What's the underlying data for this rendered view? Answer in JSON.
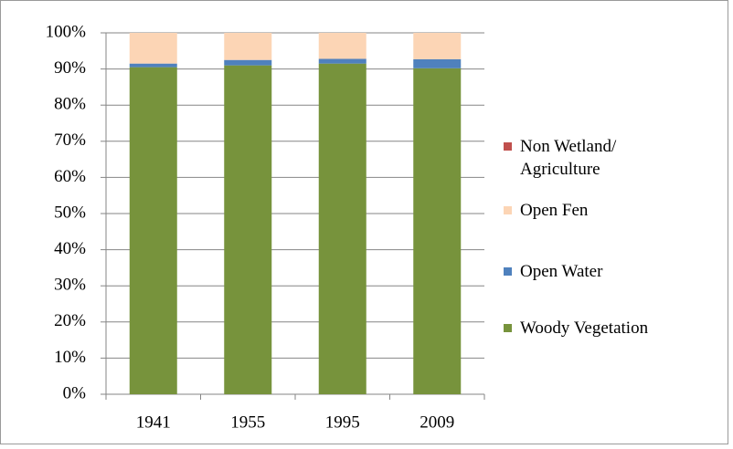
{
  "chart_data": {
    "type": "stacked_bar",
    "categories": [
      "1941",
      "1955",
      "1995",
      "2009"
    ],
    "series": [
      {
        "name": "Woody Vegetation",
        "color": "#77933c",
        "values": [
          90.5,
          91,
          91.5,
          90.2
        ]
      },
      {
        "name": "Open Water",
        "color": "#4f81bd",
        "values": [
          1,
          1.5,
          1.3,
          2.5
        ]
      },
      {
        "name": "Open Fen",
        "color": "#fcd5b5",
        "values": [
          8.5,
          7.5,
          7.2,
          7.3
        ]
      },
      {
        "name": "Non Wetland/ Agriculture",
        "color": "#c0504d",
        "values": [
          0,
          0,
          0,
          0
        ]
      }
    ],
    "ylim": [
      0,
      100
    ],
    "yticks": [
      {
        "value": 0,
        "label": "0%"
      },
      {
        "value": 10,
        "label": "10%"
      },
      {
        "value": 20,
        "label": "20%"
      },
      {
        "value": 30,
        "label": "30%"
      },
      {
        "value": 40,
        "label": "40%"
      },
      {
        "value": 50,
        "label": "50%"
      },
      {
        "value": 60,
        "label": "60%"
      },
      {
        "value": 70,
        "label": "70%"
      },
      {
        "value": 80,
        "label": "80%"
      },
      {
        "value": 90,
        "label": "90%"
      },
      {
        "value": 100,
        "label": "100%"
      }
    ],
    "grid": true,
    "legend": "right"
  }
}
